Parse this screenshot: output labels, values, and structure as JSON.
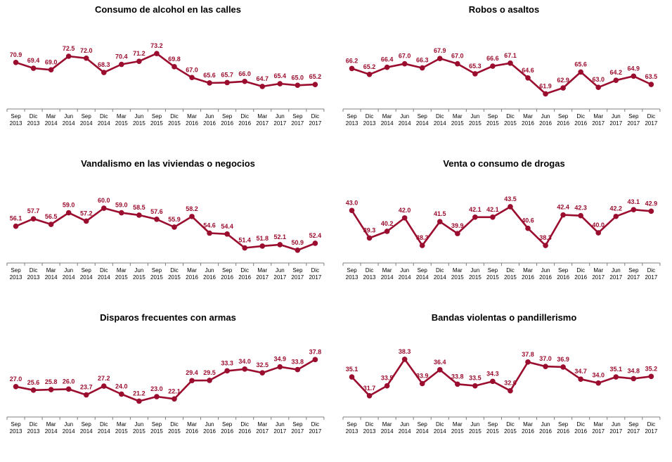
{
  "style": {
    "line_color": "#9b0d2e",
    "axis_color": "#7f7f7f",
    "grid": false
  },
  "categories": [
    [
      "Sep",
      "2013"
    ],
    [
      "Dic",
      "2013"
    ],
    [
      "Mar",
      "2014"
    ],
    [
      "Jun",
      "2014"
    ],
    [
      "Sep",
      "2014"
    ],
    [
      "Dic",
      "2014"
    ],
    [
      "Mar",
      "2015"
    ],
    [
      "Jun",
      "2015"
    ],
    [
      "Sep",
      "2015"
    ],
    [
      "Dic",
      "2015"
    ],
    [
      "Mar",
      "2016"
    ],
    [
      "Jun",
      "2016"
    ],
    [
      "Sep",
      "2016"
    ],
    [
      "Dic",
      "2016"
    ],
    [
      "Mar",
      "2017"
    ],
    [
      "Jun",
      "2017"
    ],
    [
      "Sep",
      "2017"
    ],
    [
      "Dic",
      "2017"
    ]
  ],
  "chart_data": [
    {
      "type": "line",
      "title": "Consumo de alcohol en las calles",
      "values": [
        70.9,
        69.4,
        69.0,
        72.5,
        72.0,
        68.3,
        70.4,
        71.2,
        73.2,
        69.8,
        67.0,
        65.6,
        65.7,
        66.0,
        64.7,
        65.4,
        65.0,
        65.2
      ],
      "value_labels": [
        "70.9",
        "69.4",
        "69.0",
        "72.5",
        "72.0",
        "68.3",
        "70.4",
        "71.2",
        "73.2",
        "69.8",
        "67.0",
        "65.6",
        "65.7",
        "66.0",
        "64.7",
        "65.4",
        "65.0",
        "65.2"
      ],
      "ylim": [
        60.5,
        76.5
      ]
    },
    {
      "type": "line",
      "title": "Robos o asaltos",
      "values": [
        66.2,
        65.2,
        66.4,
        67.0,
        66.3,
        67.9,
        67.0,
        65.3,
        66.6,
        67.1,
        64.6,
        61.9,
        62.9,
        65.6,
        63.0,
        64.2,
        64.9,
        63.5
      ],
      "value_labels": [
        "66.2",
        "65.2",
        "66.4",
        "67.0",
        "66.3",
        "67.9",
        "67.0",
        "65.3",
        "66.6",
        "67.1",
        "64.6",
        "61.9",
        "62.9",
        "65.6",
        "63.0",
        "64.2",
        "64.9",
        "63.5"
      ],
      "ylim": [
        60.4,
        70.9
      ]
    },
    {
      "type": "line",
      "title": "Vandalismo en las viviendas o negocios",
      "values": [
        56.1,
        57.7,
        56.5,
        59.0,
        57.2,
        60.0,
        59.0,
        58.5,
        57.6,
        55.9,
        58.2,
        54.6,
        54.4,
        51.4,
        51.8,
        52.1,
        50.9,
        52.4
      ],
      "value_labels": [
        "56.1",
        "57.7",
        "56.5",
        "59.0",
        "57.2",
        "60.0",
        "59.0",
        "58.5",
        "57.6",
        "55.9",
        "58.2",
        "54.6",
        "54.4",
        "51.4",
        "51.8",
        "52.1",
        "50.9",
        "52.4"
      ],
      "ylim": [
        49.5,
        62.9
      ]
    },
    {
      "type": "line",
      "title": "Venta o consumo de drogas",
      "values": [
        43.0,
        39.3,
        40.2,
        42.0,
        38.3,
        41.5,
        39.9,
        42.1,
        42.1,
        43.5,
        40.6,
        38.3,
        42.4,
        42.3,
        40.0,
        42.2,
        43.1,
        42.9
      ],
      "value_labels": [
        "43.0",
        "39.3",
        "40.2",
        "42.0",
        "38.3",
        "41.5",
        "39.9",
        "42.1",
        "42.1",
        "43.5",
        "40.6",
        "38.3",
        "42.4",
        "42.3",
        "40.0",
        "42.2",
        "43.1",
        "42.9"
      ],
      "ylim": [
        36.8,
        45.1
      ]
    },
    {
      "type": "line",
      "title": "Disparos frecuentes con armas",
      "values": [
        27.0,
        25.6,
        25.8,
        26.0,
        23.7,
        27.2,
        24.0,
        21.2,
        23.0,
        22.1,
        29.4,
        29.5,
        33.3,
        34.0,
        32.5,
        34.9,
        33.8,
        37.8
      ],
      "value_labels": [
        "27.0",
        "25.6",
        "25.8",
        "26.0",
        "23.7",
        "27.2",
        "24.0",
        "21.2",
        "23.0",
        "22.1",
        "29.4",
        "29.5",
        "33.3",
        "34.0",
        "32.5",
        "34.9",
        "33.8",
        "37.8"
      ],
      "ylim": [
        17.4,
        42.1
      ]
    },
    {
      "type": "line",
      "title": "Bandas violentas o pandillerismo",
      "values": [
        35.1,
        31.7,
        33.5,
        38.3,
        33.9,
        36.4,
        33.8,
        33.5,
        34.3,
        32.6,
        37.8,
        37.0,
        36.9,
        34.7,
        34.0,
        35.1,
        34.8,
        35.2
      ],
      "value_labels": [
        "35.1",
        "31.7",
        "33.5",
        "38.3",
        "33.9",
        "36.4",
        "33.8",
        "33.5",
        "34.3",
        "32.6",
        "37.8",
        "37.0",
        "36.9",
        "34.7",
        "34.0",
        "35.1",
        "34.8",
        "35.2"
      ],
      "ylim": [
        29.0,
        40.2
      ]
    }
  ]
}
